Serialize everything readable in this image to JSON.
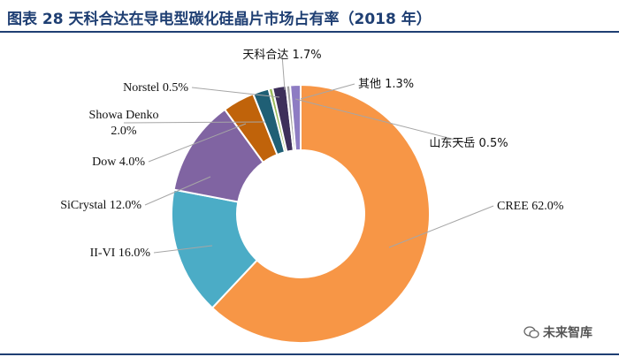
{
  "title": "图表 28 天科合达在导电型碳化硅晶片市场占有率（2018 年）",
  "watermark": "未来智库",
  "chart_data": {
    "type": "pie",
    "style": "donut",
    "title": "图表 28 天科合达在导电型碳化硅晶片市场占有率（2018 年）",
    "slices": [
      {
        "name": "CREE",
        "value": 62.0,
        "label": "CREE 62.0%",
        "color": "#f79646"
      },
      {
        "name": "II-VI",
        "value": 16.0,
        "label": "II-VI  16.0%",
        "color": "#4bacc6"
      },
      {
        "name": "SiCrystal",
        "value": 12.0,
        "label": "SiCrystal 12.0%",
        "color": "#8064a2"
      },
      {
        "name": "Dow",
        "value": 4.0,
        "label": "Dow 4.0%",
        "color": "#c0630a"
      },
      {
        "name": "Showa Denko",
        "value": 2.0,
        "label": "Showa Denko|2.0%",
        "color": "#1f5f75"
      },
      {
        "name": "Norstel",
        "value": 0.5,
        "label": "Norstel 0.5%",
        "color": "#9bbb59"
      },
      {
        "name": "天科合达",
        "value": 1.7,
        "label": "天科合达 1.7%",
        "color": "#3d2f5a"
      },
      {
        "name": "山东天岳",
        "value": 0.5,
        "label": "山东天岳 0.5%",
        "color": "#a5a5a5"
      },
      {
        "name": "其他",
        "value": 1.3,
        "label": "其他 1.3%",
        "color": "#8e7cc3"
      }
    ]
  }
}
